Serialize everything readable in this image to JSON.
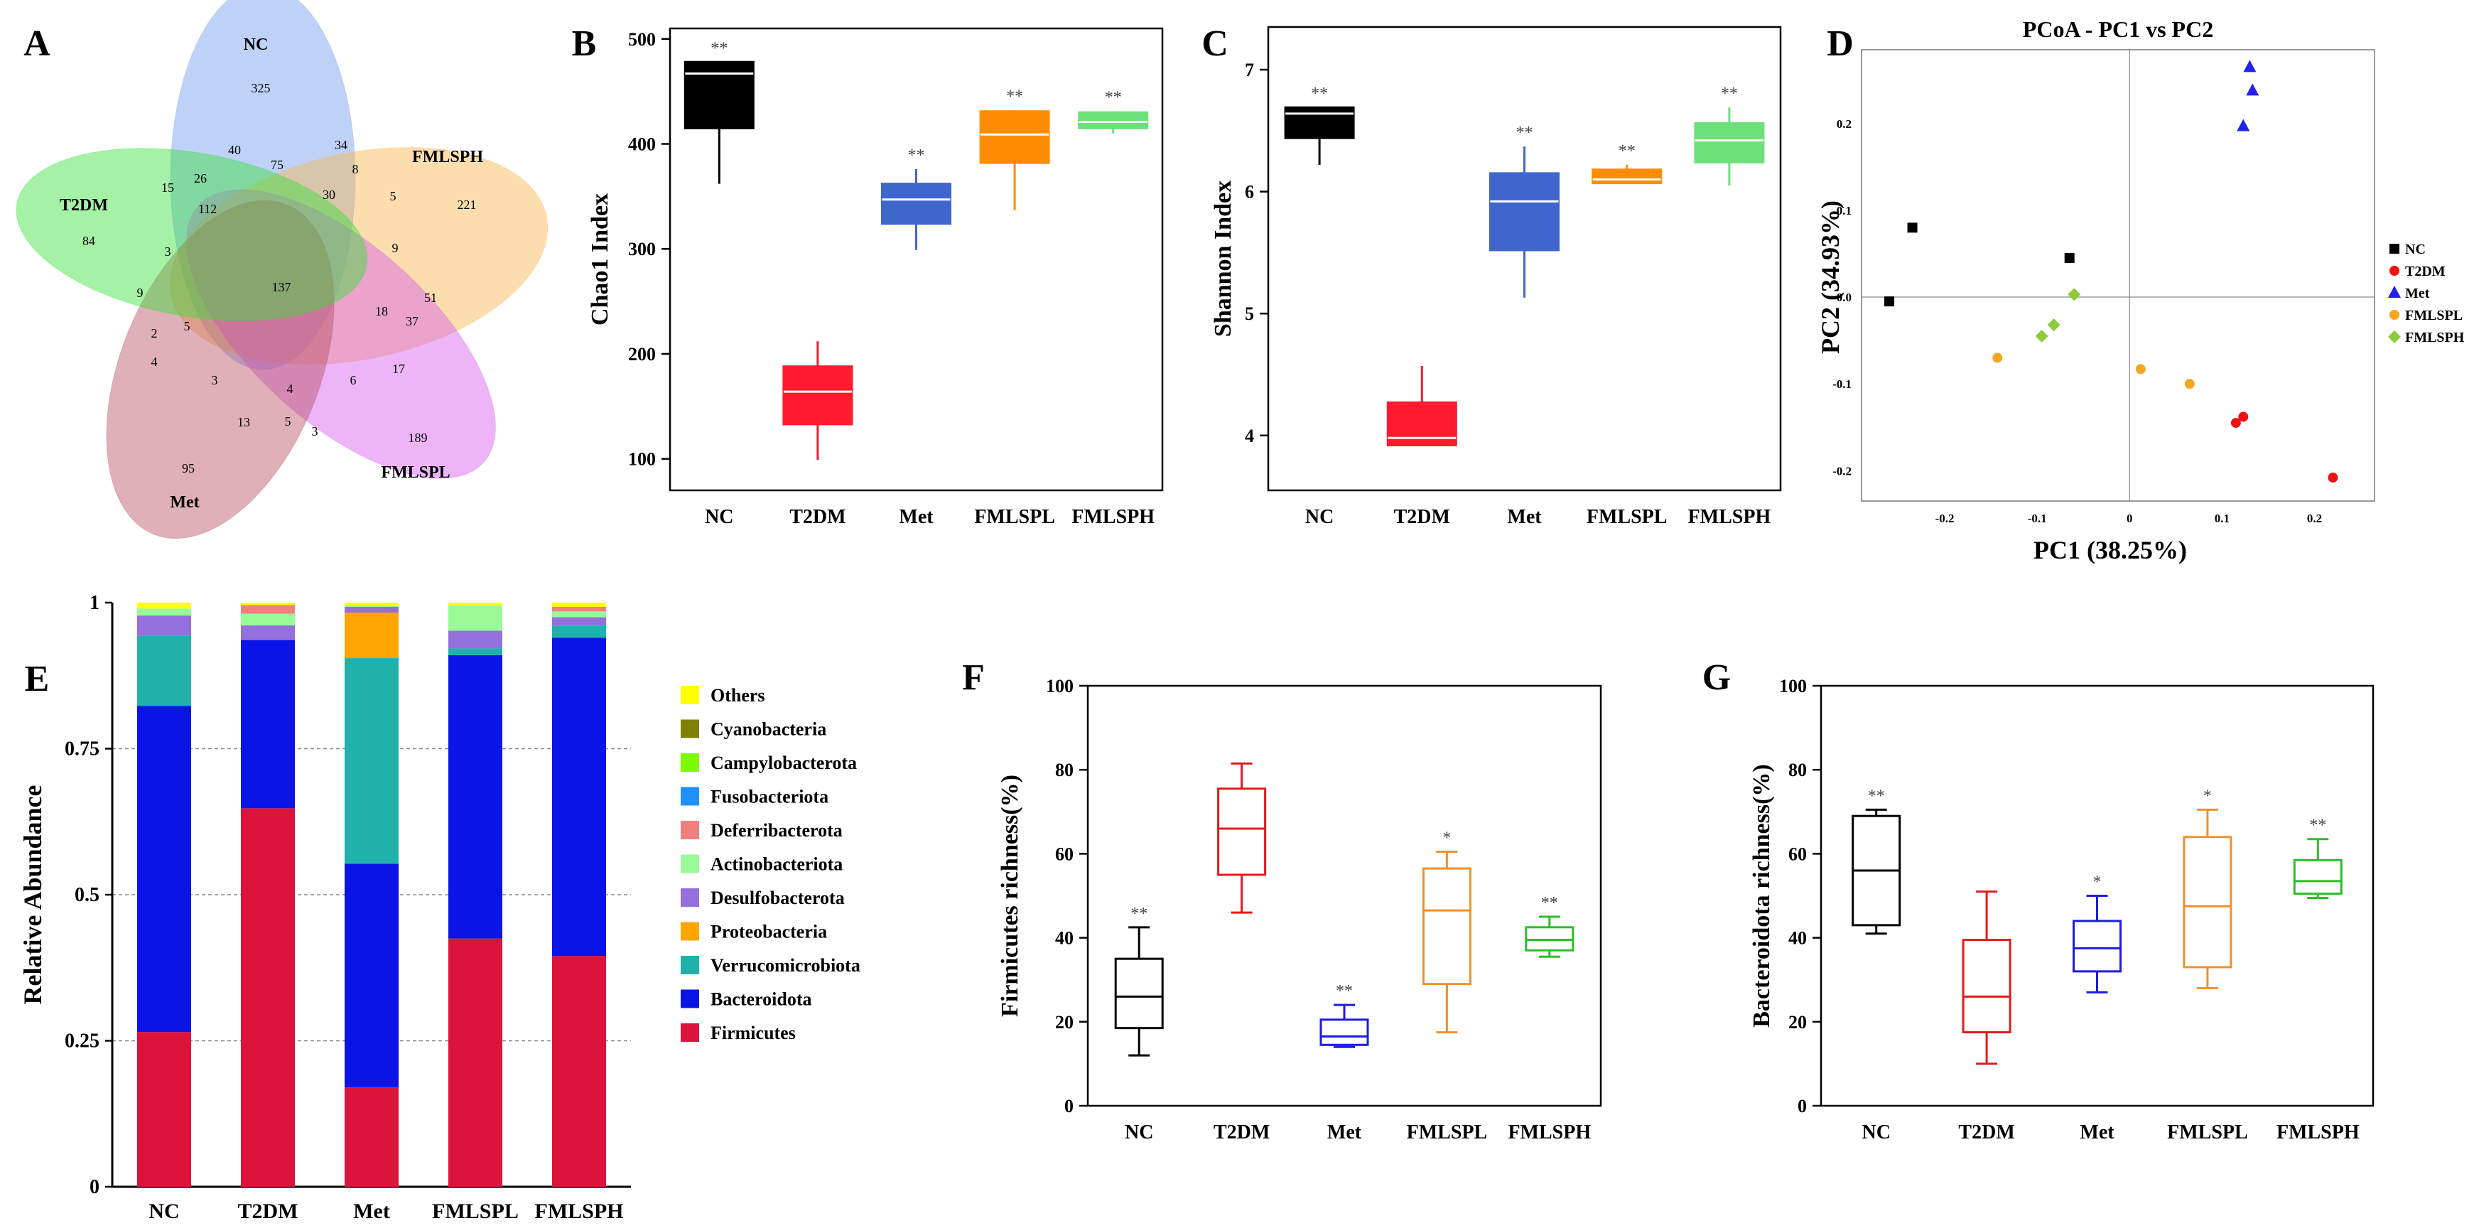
{
  "panels": {
    "A": {
      "letter": "A"
    },
    "B": {
      "letter": "B"
    },
    "C": {
      "letter": "C"
    },
    "D": {
      "letter": "D"
    },
    "E": {
      "letter": "E"
    },
    "F": {
      "letter": "F"
    },
    "G": {
      "letter": "G"
    }
  },
  "colors": {
    "NC": "#000000",
    "T2DM": "#ff1a2e",
    "Met": "#3f66cc",
    "FMLSPL": "#ff8c00",
    "FMLSPH": "#6de07a",
    "D_NC": "#000000",
    "D_T2DM": "#ee1111",
    "D_Met": "#2222ee",
    "D_FMLSPL": "#f5a623",
    "D_FMLSPH": "#8ccc3c",
    "F_NC": "#000000",
    "F_T2DM": "#e01c1c",
    "F_Met": "#1c1ce0",
    "F_FMLSPL": "#f0902a",
    "F_FMLSPH": "#28c028"
  },
  "chart_data": [
    {
      "panel": "A",
      "type": "venn",
      "sets": [
        {
          "key": "NC",
          "label": "NC",
          "color": "#6f9cf0"
        },
        {
          "key": "FMLSPH",
          "label": "FMLSPH",
          "color": "#f8b64c"
        },
        {
          "key": "FMLSPL",
          "label": "FMLSPL",
          "color": "#d65cf0"
        },
        {
          "key": "Met",
          "label": "Met",
          "color": "#b85062"
        },
        {
          "key": "T2DM",
          "label": "T2DM",
          "color": "#37e037"
        }
      ],
      "region_counts": [
        "325",
        "221",
        "189",
        "95",
        "84",
        "137",
        "40",
        "75",
        "34",
        "8",
        "30",
        "5",
        "15",
        "26",
        "112",
        "3",
        "9",
        "9",
        "51",
        "18",
        "37",
        "17",
        "6",
        "2",
        "5",
        "4",
        "3",
        "4",
        "13",
        "5",
        "3"
      ]
    },
    {
      "panel": "B",
      "type": "boxplot",
      "title": "",
      "ylabel": "Chao1 Index",
      "ylim": [
        70,
        510
      ],
      "yticks": [
        100,
        200,
        300,
        400,
        500
      ],
      "categories": [
        "NC",
        "T2DM",
        "Met",
        "FMLSPL",
        "FMLSPH"
      ],
      "boxes": [
        {
          "name": "NC",
          "min": 362,
          "q1": 415,
          "median": 467,
          "q3": 478,
          "max": 478,
          "sig": "**"
        },
        {
          "name": "T2DM",
          "min": 99,
          "q1": 133,
          "median": 164,
          "q3": 188,
          "max": 212,
          "sig": ""
        },
        {
          "name": "Met",
          "min": 299,
          "q1": 324,
          "median": 347,
          "q3": 362,
          "max": 376,
          "sig": "**"
        },
        {
          "name": "FMLSPL",
          "min": 337,
          "q1": 382,
          "median": 409,
          "q3": 431,
          "max": 432,
          "sig": "**"
        },
        {
          "name": "FMLSPH",
          "min": 410,
          "q1": 415,
          "median": 421,
          "q3": 430,
          "max": 431,
          "sig": "**"
        }
      ]
    },
    {
      "panel": "C",
      "type": "boxplot",
      "title": "",
      "ylabel": "Shannon Index",
      "ylim": [
        3.55,
        7.35
      ],
      "yticks": [
        4,
        5,
        6,
        7
      ],
      "categories": [
        "NC",
        "T2DM",
        "Met",
        "FMLSPL",
        "FMLSPH"
      ],
      "boxes": [
        {
          "name": "NC",
          "min": 6.22,
          "q1": 6.44,
          "median": 6.64,
          "q3": 6.69,
          "max": 6.69,
          "sig": "**"
        },
        {
          "name": "T2DM",
          "min": 3.92,
          "q1": 3.92,
          "median": 3.98,
          "q3": 4.27,
          "max": 4.57,
          "sig": ""
        },
        {
          "name": "Met",
          "min": 5.13,
          "q1": 5.52,
          "median": 5.92,
          "q3": 6.15,
          "max": 6.37,
          "sig": "**"
        },
        {
          "name": "FMLSPL",
          "min": 6.07,
          "q1": 6.07,
          "median": 6.1,
          "q3": 6.18,
          "max": 6.22,
          "sig": "**"
        },
        {
          "name": "FMLSPH",
          "min": 6.05,
          "q1": 6.24,
          "median": 6.42,
          "q3": 6.56,
          "max": 6.69,
          "sig": "**"
        }
      ]
    },
    {
      "panel": "D",
      "type": "scatter",
      "title": "PCoA - PC1 vs PC2",
      "xlabel": "PC1 (38.25%)",
      "ylabel": "PC2 (34.93%)",
      "xlim": [
        -0.29,
        0.265
      ],
      "ylim": [
        -0.235,
        0.285
      ],
      "xticks": [
        -0.2,
        -0.1,
        0,
        0.1,
        0.2
      ],
      "yticks": [
        -0.2,
        -0.1,
        0,
        0.1,
        0.2
      ],
      "xtick_labels": [
        "-0.2",
        "-0.1",
        "0",
        "0.1",
        "0.2"
      ],
      "ytick_labels": [
        "-0.2",
        "-0.1",
        "0.0",
        "0.1",
        "0.2"
      ],
      "series": [
        {
          "name": "NC",
          "marker": "square",
          "points": [
            [
              -0.26,
              -0.005
            ],
            [
              -0.235,
              0.08
            ],
            [
              -0.065,
              0.045
            ]
          ]
        },
        {
          "name": "T2DM",
          "marker": "circle",
          "points": [
            [
              0.115,
              -0.145
            ],
            [
              0.123,
              -0.138
            ],
            [
              0.22,
              -0.208
            ]
          ]
        },
        {
          "name": "Met",
          "marker": "triangle",
          "points": [
            [
              0.13,
              0.265
            ],
            [
              0.133,
              0.238
            ],
            [
              0.123,
              0.197
            ]
          ]
        },
        {
          "name": "FMLSPL",
          "marker": "circle",
          "points": [
            [
              -0.143,
              -0.07
            ],
            [
              0.012,
              -0.083
            ],
            [
              0.065,
              -0.1
            ]
          ]
        },
        {
          "name": "FMLSPH",
          "marker": "diamond",
          "points": [
            [
              -0.095,
              -0.045
            ],
            [
              -0.082,
              -0.032
            ],
            [
              -0.06,
              0.003
            ]
          ]
        }
      ]
    },
    {
      "panel": "E",
      "type": "stacked-bar",
      "ylabel": "Relative Abundance",
      "ylim": [
        0,
        1
      ],
      "yticks": [
        0,
        0.25,
        0.5,
        0.75,
        1
      ],
      "ytick_labels": [
        "0",
        "0.25",
        "0.5",
        "0.75",
        "1"
      ],
      "categories": [
        "NC",
        "T2DM",
        "Met",
        "FMLSPL",
        "FMLSPH"
      ],
      "series": [
        {
          "name": "Firmicutes",
          "color": "#dc143c",
          "values": [
            0.265,
            0.648,
            0.17,
            0.425,
            0.395
          ]
        },
        {
          "name": "Bacteroidota",
          "color": "#0a14e6",
          "values": [
            0.558,
            0.288,
            0.383,
            0.485,
            0.545
          ]
        },
        {
          "name": "Verrucomicrobiota",
          "color": "#20b2aa",
          "values": [
            0.12,
            0.0,
            0.352,
            0.012,
            0.02
          ]
        },
        {
          "name": "Proteobacteria",
          "color": "#ffa500",
          "values": [
            0.0,
            0.0,
            0.078,
            0.0,
            0.0
          ]
        },
        {
          "name": "Desulfobacterota",
          "color": "#9370db",
          "values": [
            0.035,
            0.025,
            0.01,
            0.03,
            0.015
          ]
        },
        {
          "name": "Actinobacteriota",
          "color": "#98fb98",
          "values": [
            0.012,
            0.02,
            0.002,
            0.043,
            0.01
          ]
        },
        {
          "name": "Deferribacterota",
          "color": "#f08080",
          "values": [
            0.0,
            0.015,
            0.0,
            0.0,
            0.008
          ]
        },
        {
          "name": "Fusobacteriota",
          "color": "#1e90ff",
          "values": [
            0.0,
            0.0,
            0.0,
            0.0,
            0.0
          ]
        },
        {
          "name": "Campylobacterota",
          "color": "#7cfc00",
          "values": [
            0.0,
            0.0,
            0.0,
            0.0,
            0.0
          ]
        },
        {
          "name": "Cyanobacteria",
          "color": "#808000",
          "values": [
            0.0,
            0.0,
            0.0,
            0.0,
            0.0
          ]
        },
        {
          "name": "Others",
          "color": "#ffff00",
          "values": [
            0.01,
            0.004,
            0.005,
            0.005,
            0.007
          ]
        }
      ]
    },
    {
      "panel": "F",
      "type": "boxplot",
      "style": "open",
      "ylabel": "Firmicutes richness(%)",
      "ylim": [
        0,
        100
      ],
      "yticks": [
        0,
        20,
        40,
        60,
        80,
        100
      ],
      "categories": [
        "NC",
        "T2DM",
        "Met",
        "FMLSPL",
        "FMLSPH"
      ],
      "boxes": [
        {
          "name": "NC",
          "min": 12,
          "q1": 18.5,
          "median": 26,
          "q3": 35,
          "max": 42.5,
          "sig": "**"
        },
        {
          "name": "T2DM",
          "min": 46,
          "q1": 55,
          "median": 66,
          "q3": 75.5,
          "max": 81.5,
          "sig": ""
        },
        {
          "name": "Met",
          "min": 14,
          "q1": 14.5,
          "median": 16.5,
          "q3": 20.5,
          "max": 24,
          "sig": "**"
        },
        {
          "name": "FMLSPL",
          "min": 17.5,
          "q1": 29,
          "median": 46.5,
          "q3": 56.5,
          "max": 60.5,
          "sig": "*"
        },
        {
          "name": "FMLSPH",
          "min": 35.5,
          "q1": 37,
          "median": 39.5,
          "q3": 42.5,
          "max": 45,
          "sig": "**"
        }
      ]
    },
    {
      "panel": "G",
      "type": "boxplot",
      "style": "open",
      "ylabel": "Bacteroidota richness(%)",
      "ylim": [
        0,
        100
      ],
      "yticks": [
        0,
        20,
        40,
        60,
        80,
        100
      ],
      "categories": [
        "NC",
        "T2DM",
        "Met",
        "FMLSPL",
        "FMLSPH"
      ],
      "boxes": [
        {
          "name": "NC",
          "min": 41,
          "q1": 43,
          "median": 56,
          "q3": 69,
          "max": 70.5,
          "sig": "**"
        },
        {
          "name": "T2DM",
          "min": 10,
          "q1": 17.5,
          "median": 26,
          "q3": 39.5,
          "max": 51,
          "sig": ""
        },
        {
          "name": "Met",
          "min": 27,
          "q1": 32,
          "median": 37.5,
          "q3": 44,
          "max": 50,
          "sig": "*"
        },
        {
          "name": "FMLSPL",
          "min": 28,
          "q1": 33,
          "median": 47.5,
          "q3": 64,
          "max": 70.5,
          "sig": "*"
        },
        {
          "name": "FMLSPH",
          "min": 49.5,
          "q1": 50.5,
          "median": 53.5,
          "q3": 58.5,
          "max": 63.5,
          "sig": "**"
        }
      ]
    }
  ]
}
